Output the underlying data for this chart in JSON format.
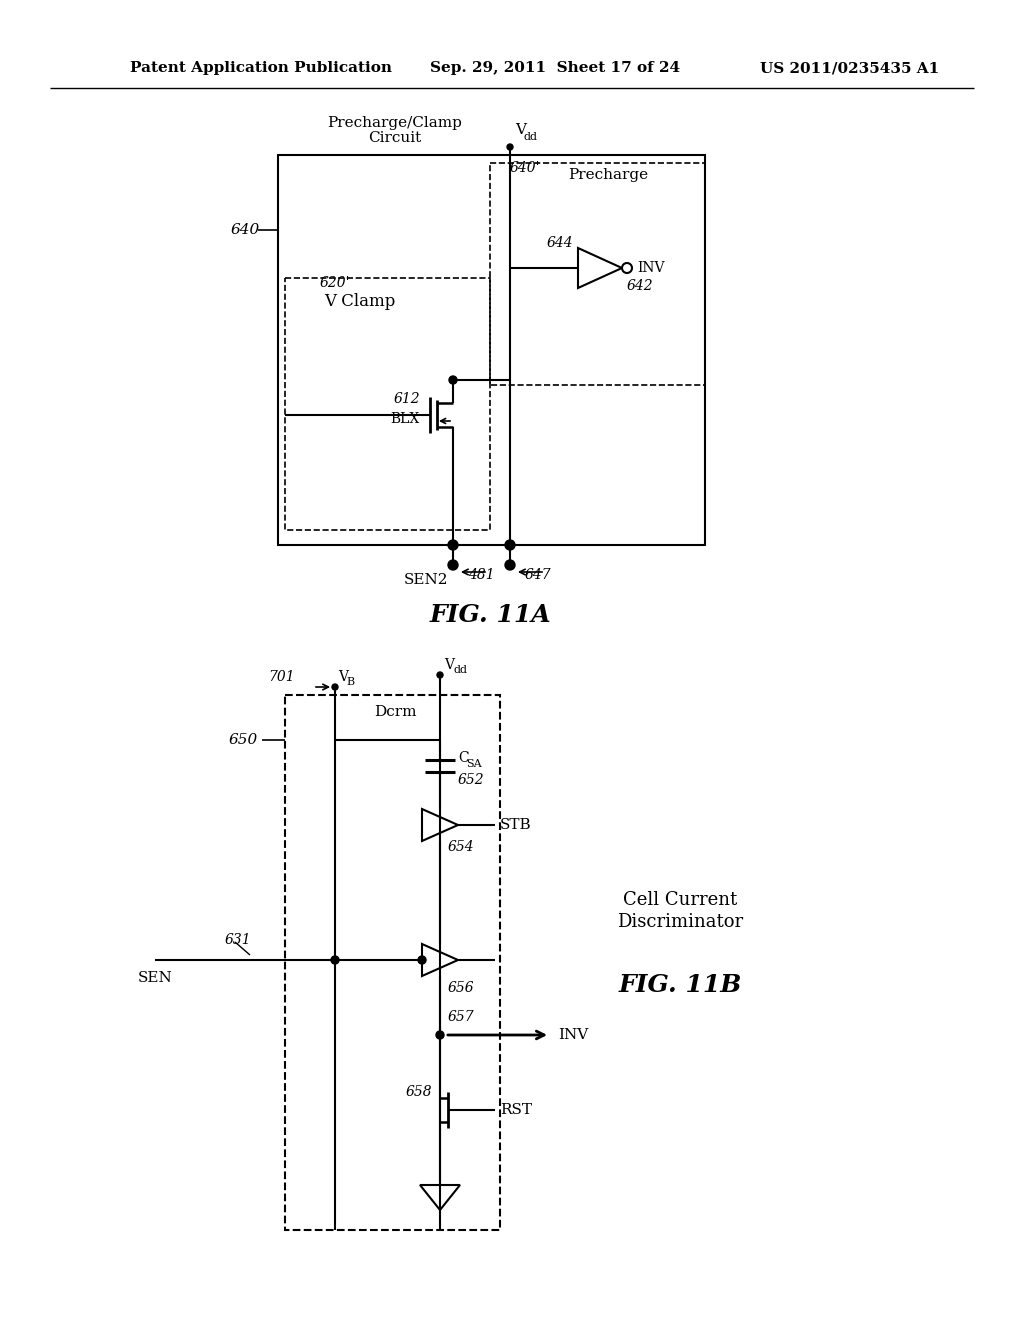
{
  "bg_color": "#ffffff",
  "line_color": "#000000",
  "text_color": "#000000",
  "header_text_left": "Patent Application Publication",
  "header_text_mid": "Sep. 29, 2011  Sheet 17 of 24",
  "header_text_right": "US 2011/0235435 A1",
  "fig11a_label": "FIG. 11A",
  "fig11b_label": "FIG. 11B",
  "cell_current_discriminator_line1": "Cell Current",
  "cell_current_discriminator_line2": "Discriminator"
}
